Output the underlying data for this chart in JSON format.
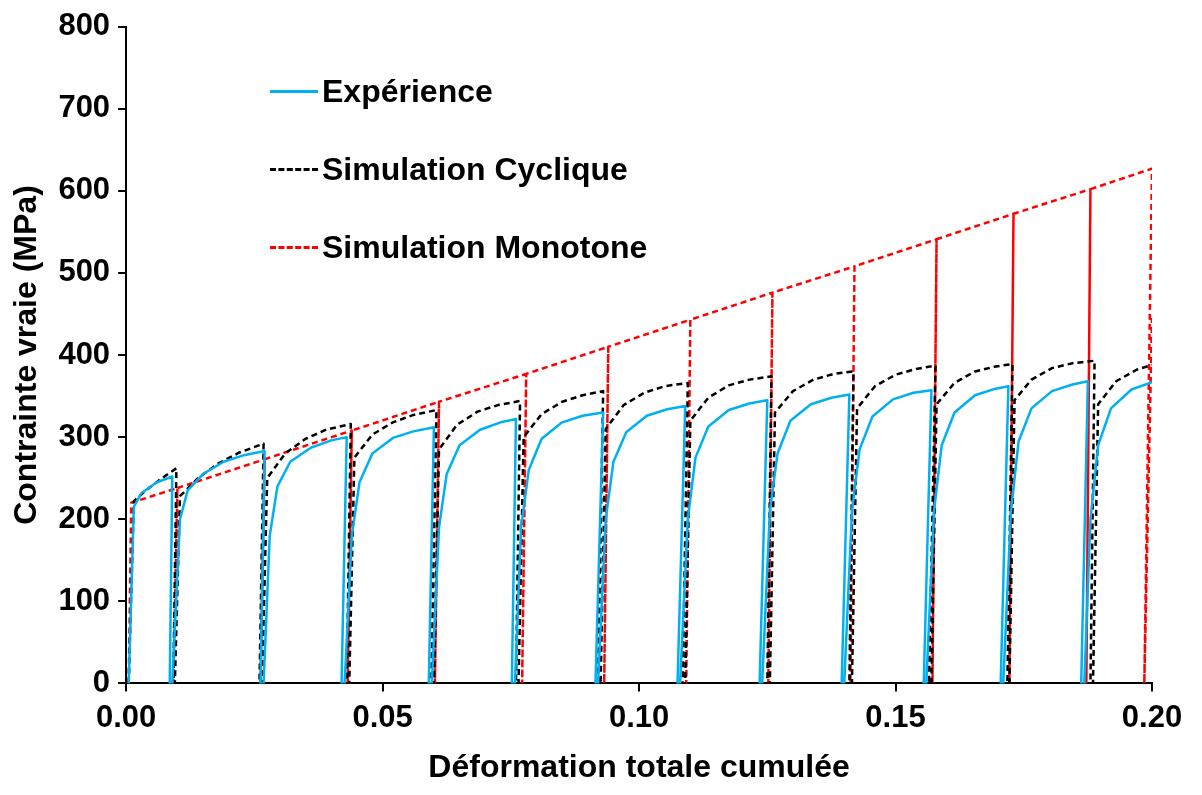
{
  "chart_data": {
    "type": "line",
    "xlabel": "Déformation totale cumulée",
    "ylabel": "Contrainte vraie (MPa)",
    "xlim": [
      0,
      0.2
    ],
    "ylim": [
      0,
      800
    ],
    "xticks": [
      {
        "value": 0,
        "label": "0.00"
      },
      {
        "value": 0.05,
        "label": "0.05"
      },
      {
        "value": 0.1,
        "label": "0.10"
      },
      {
        "value": 0.15,
        "label": "0.15"
      },
      {
        "value": 0.2,
        "label": "0.20"
      }
    ],
    "yticks": [
      0,
      100,
      200,
      300,
      400,
      500,
      600,
      700,
      800
    ],
    "grid": false,
    "legend": "top left",
    "marker": "none",
    "series": [
      {
        "name": "Expérience",
        "color": "#00b0f0",
        "line_style": "solid",
        "x": [
          0.0005,
          0.0015,
          0.003,
          0.006,
          0.009,
          0.0085,
          0.009,
          0.0105,
          0.012,
          0.015,
          0.019,
          0.023,
          0.027,
          0.0262,
          0.0268,
          0.028,
          0.0295,
          0.032,
          0.036,
          0.04,
          0.043,
          0.042,
          0.0426,
          0.044,
          0.0455,
          0.048,
          0.052,
          0.056,
          0.06,
          0.059,
          0.0596,
          0.061,
          0.0625,
          0.065,
          0.069,
          0.073,
          0.076,
          0.0752,
          0.0758,
          0.077,
          0.0785,
          0.081,
          0.085,
          0.089,
          0.093,
          0.0915,
          0.092,
          0.0935,
          0.095,
          0.0975,
          0.1015,
          0.1055,
          0.109,
          0.1075,
          0.108,
          0.1095,
          0.111,
          0.1135,
          0.1175,
          0.1215,
          0.125,
          0.1235,
          0.124,
          0.1255,
          0.127,
          0.1295,
          0.1335,
          0.1375,
          0.141,
          0.1395,
          0.14,
          0.1415,
          0.143,
          0.1455,
          0.1495,
          0.1535,
          0.157,
          0.1555,
          0.156,
          0.1575,
          0.159,
          0.1615,
          0.1655,
          0.1695,
          0.172,
          0.1705,
          0.171,
          0.1725,
          0.174,
          0.1765,
          0.1805,
          0.1845,
          0.1875,
          0.1862,
          0.1868,
          0.188,
          0.1895,
          0.192,
          0.196,
          0.2
        ],
        "values": [
          0,
          215,
          232,
          245,
          252,
          0,
          0,
          200,
          235,
          255,
          270,
          278,
          283,
          0,
          0,
          180,
          240,
          270,
          287,
          296,
          300,
          0,
          0,
          180,
          245,
          280,
          299,
          307,
          312,
          0,
          0,
          190,
          255,
          290,
          309,
          318,
          322,
          0,
          0,
          190,
          260,
          298,
          318,
          326,
          330,
          0,
          0,
          200,
          270,
          306,
          326,
          334,
          338,
          0,
          0,
          200,
          275,
          313,
          333,
          341,
          345,
          0,
          0,
          210,
          280,
          320,
          340,
          348,
          352,
          0,
          0,
          210,
          285,
          325,
          346,
          354,
          357,
          0,
          0,
          210,
          290,
          330,
          351,
          359,
          362,
          0,
          0,
          210,
          295,
          335,
          356,
          364,
          368,
          0,
          0,
          200,
          290,
          335,
          358,
          367
        ]
      },
      {
        "name": "Simulation Cyclique",
        "color": "#000000",
        "line_style": "dashed",
        "x": [
          0.0005,
          0.0015,
          0.004,
          0.007,
          0.0098,
          0.0092,
          0.0095,
          0.0105,
          0.014,
          0.018,
          0.022,
          0.0268,
          0.026,
          0.0265,
          0.0275,
          0.031,
          0.035,
          0.039,
          0.0438,
          0.043,
          0.0435,
          0.0445,
          0.048,
          0.052,
          0.056,
          0.0605,
          0.0595,
          0.06,
          0.061,
          0.0645,
          0.0685,
          0.0725,
          0.0768,
          0.076,
          0.0765,
          0.0775,
          0.081,
          0.085,
          0.089,
          0.093,
          0.092,
          0.0925,
          0.0935,
          0.097,
          0.101,
          0.105,
          0.1095,
          0.1085,
          0.109,
          0.11,
          0.1135,
          0.1175,
          0.1215,
          0.1258,
          0.125,
          0.1255,
          0.1265,
          0.13,
          0.134,
          0.138,
          0.1418,
          0.141,
          0.1415,
          0.1425,
          0.146,
          0.15,
          0.154,
          0.1578,
          0.1565,
          0.157,
          0.158,
          0.1615,
          0.1655,
          0.1695,
          0.1728,
          0.1718,
          0.1722,
          0.1732,
          0.1765,
          0.1805,
          0.1845,
          0.1888,
          0.188,
          0.1885,
          0.1895,
          0.193,
          0.197,
          0.2
        ],
        "values": [
          0,
          222,
          236,
          250,
          262,
          0,
          0,
          228,
          250,
          268,
          281,
          292,
          0,
          0,
          250,
          280,
          298,
          309,
          316,
          0,
          0,
          275,
          303,
          318,
          327,
          333,
          0,
          0,
          285,
          315,
          331,
          339,
          344,
          0,
          0,
          300,
          328,
          343,
          351,
          356,
          0,
          0,
          310,
          339,
          354,
          362,
          366,
          0,
          0,
          320,
          348,
          363,
          370,
          374,
          0,
          0,
          330,
          356,
          370,
          377,
          380,
          0,
          0,
          335,
          362,
          376,
          383,
          387,
          0,
          0,
          340,
          366,
          380,
          386,
          389,
          0,
          0,
          345,
          370,
          384,
          390,
          393,
          0,
          0,
          340,
          368,
          382,
          388
        ]
      },
      {
        "name": "Simulation Monotone",
        "color": "#ff0000",
        "line_style": "dashed",
        "x": [
          0.0005,
          0.001,
          0.01,
          0.0092,
          0.01,
          0.027,
          0.0262,
          0.027,
          0.044,
          0.0432,
          0.044,
          0.061,
          0.0602,
          0.061,
          0.078,
          0.0772,
          0.078,
          0.094,
          0.0932,
          0.094,
          0.11,
          0.1092,
          0.11,
          0.126,
          0.1252,
          0.126,
          0.142,
          0.1412,
          0.142,
          0.158,
          0.1572,
          0.158,
          0.173,
          0.1722,
          0.173,
          0.188,
          0.1872,
          0.188,
          0.2,
          0.1985,
          0.2
        ],
        "values": [
          0,
          220,
          238,
          0,
          238,
          273,
          0,
          273,
          308,
          0,
          308,
          343,
          0,
          343,
          377,
          0,
          377,
          410,
          0,
          410,
          443,
          0,
          443,
          476,
          0,
          476,
          508,
          0,
          508,
          541,
          0,
          541,
          572,
          0,
          572,
          602,
          0,
          602,
          627,
          0,
          445
        ]
      }
    ]
  }
}
